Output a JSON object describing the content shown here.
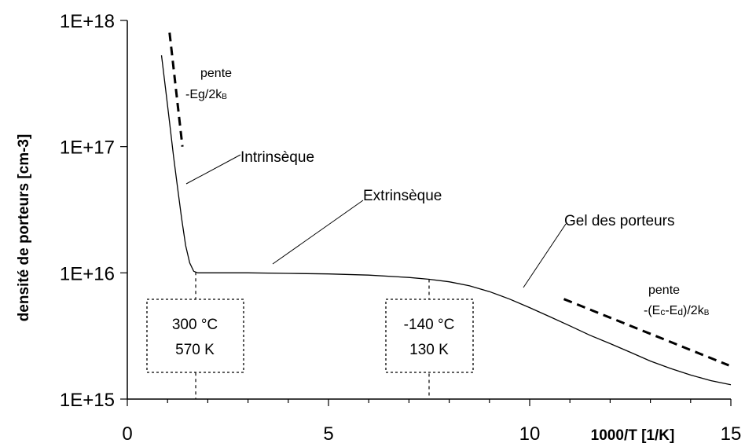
{
  "chart_data": {
    "type": "line",
    "title": "",
    "xlabel": "1000/T [1/K]",
    "ylabel": "densité de porteurs [cm-3]",
    "xlim": [
      0,
      15
    ],
    "ylim": [
      1000000000000000.0,
      1e+18
    ],
    "yscale": "log",
    "grid": false,
    "x_ticks": [
      "0",
      "5",
      "10",
      "15"
    ],
    "y_ticks": [
      "1E+15",
      "1E+16",
      "1E+17",
      "1E+18"
    ],
    "series": [
      {
        "x": [
          0.85,
          0.95,
          1.05,
          1.15,
          1.25,
          1.35,
          1.45,
          1.55,
          1.65,
          1.75,
          2.0,
          3.0,
          4.0,
          5.0,
          6.0,
          7.0,
          7.5,
          8.0,
          8.5,
          9.0,
          9.5,
          10.0,
          10.5,
          11.0,
          11.5,
          12.0,
          12.5,
          13.0,
          13.5,
          14.0,
          14.5,
          15.0
        ],
        "y": [
          5.3e+17,
          2.9e+17,
          1.55e+17,
          8.3e+16,
          4.7e+16,
          2.7e+16,
          1.65e+16,
          1.2e+16,
          1.03e+16,
          1e+16,
          1e+16,
          1e+16,
          9900000000000000.0,
          9800000000000000.0,
          9600000000000000.0,
          9200000000000000.0,
          8900000000000000.0,
          8500000000000000.0,
          7900000000000000.0,
          7100000000000000.0,
          6200000000000000.0,
          5300000000000000.0,
          4500000000000000.0,
          3800000000000000.0,
          3200000000000000.0,
          2750000000000000.0,
          2350000000000000.0,
          2000000000000000.0,
          1750000000000000.0,
          1550000000000000.0,
          1400000000000000.0,
          1300000000000000.0
        ]
      }
    ],
    "slope_lines": [
      {
        "x": [
          1.05,
          1.37
        ],
        "y": [
          8e+17,
          1e+17
        ]
      },
      {
        "x": [
          10.85,
          14.95
        ],
        "y": [
          6200000000000000.0,
          1850000000000000.0
        ]
      }
    ],
    "markers": [
      {
        "x": 1.7,
        "text_lines": [
          "300 °C",
          "570 K"
        ]
      },
      {
        "x": 7.5,
        "text_lines": [
          "-140 °C",
          "130 K"
        ]
      }
    ],
    "annotations": {
      "intrinseque": "Intrinsèque",
      "extrinseque": "Extrinsèque",
      "gel": "Gel des porteurs",
      "pente1_title": "pente",
      "pente1_formula": "-Eg/2k",
      "pente1_sub": "B",
      "pente2_title": "pente",
      "pente2_formula_a": "-(E",
      "pente2_sub_c": "c",
      "pente2_formula_b": "-E",
      "pente2_sub_d": "d",
      "pente2_formula_c": ")/2k",
      "pente2_sub_b": "B"
    }
  }
}
